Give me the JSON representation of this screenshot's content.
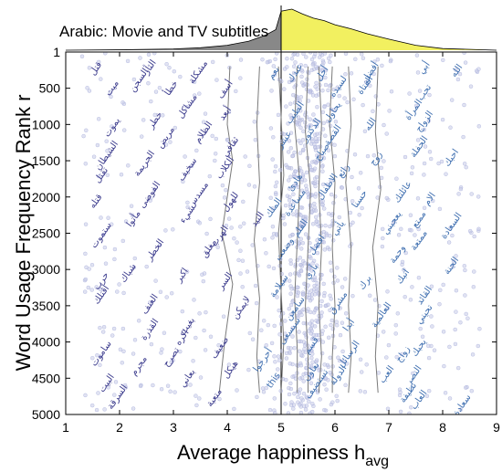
{
  "chart_data": {
    "type": "scatter",
    "title": "Arabic: Movie and TV subtitles",
    "xlabel": "Average happiness h",
    "xlabel_subscript": "avg",
    "ylabel": "Word Usage Frequency Rank r",
    "xlim": [
      1,
      9
    ],
    "ylim": [
      1,
      5000
    ],
    "x_ticks": [
      1,
      2,
      3,
      4,
      5,
      6,
      7,
      8,
      9
    ],
    "y_ticks": [
      1,
      500,
      1000,
      1500,
      2000,
      2500,
      3000,
      3500,
      4000,
      4500,
      5000
    ],
    "y_tick_labels": [
      "1",
      "500",
      "1000",
      "1500",
      "2000",
      "2500",
      "3000",
      "3500",
      "4000",
      "4500",
      "5000"
    ],
    "y_inverted": true,
    "grid": false,
    "colors": {
      "points": "#c8cce8",
      "low_words": "#3a3a8c",
      "high_words": "#3f6fb0",
      "median_lines": "#7a7a7a",
      "dist_low_fill": "#888888",
      "dist_high_fill": "#f2f060",
      "neutral_line": "#000000"
    },
    "marginal_distribution": {
      "split_at": 5,
      "x": [
        1,
        2,
        3,
        3.5,
        4,
        4.4,
        4.7,
        4.9,
        5,
        5.2,
        5.4,
        5.6,
        5.8,
        6,
        6.3,
        6.6,
        7,
        7.5,
        8,
        9
      ],
      "density": [
        0,
        0.01,
        0.03,
        0.06,
        0.12,
        0.22,
        0.36,
        0.5,
        0.95,
        1.0,
        0.88,
        0.78,
        0.72,
        0.62,
        0.52,
        0.4,
        0.27,
        0.12,
        0.04,
        0
      ]
    },
    "deciles": [
      {
        "name": "10%",
        "points": [
          [
            4.05,
            200
          ],
          [
            4.0,
            1000
          ],
          [
            4.1,
            1500
          ],
          [
            3.9,
            2500
          ],
          [
            4.1,
            3200
          ],
          [
            3.95,
            4000
          ],
          [
            3.85,
            4700
          ]
        ]
      },
      {
        "name": "20%",
        "points": [
          [
            4.6,
            200
          ],
          [
            4.55,
            1000
          ],
          [
            4.6,
            1800
          ],
          [
            4.5,
            2600
          ],
          [
            4.6,
            3400
          ],
          [
            4.55,
            4200
          ],
          [
            4.6,
            4700
          ]
        ]
      },
      {
        "name": "30%",
        "points": [
          [
            4.95,
            200
          ],
          [
            5.0,
            900
          ],
          [
            5.05,
            1700
          ],
          [
            4.95,
            2500
          ],
          [
            5.0,
            3300
          ],
          [
            5.05,
            4000
          ],
          [
            5.0,
            4700
          ]
        ]
      },
      {
        "name": "40%",
        "points": [
          [
            5.3,
            200
          ],
          [
            5.25,
            1000
          ],
          [
            5.35,
            1800
          ],
          [
            5.3,
            2600
          ],
          [
            5.25,
            3400
          ],
          [
            5.3,
            4100
          ],
          [
            5.3,
            4700
          ]
        ]
      },
      {
        "name": "50%",
        "points": [
          [
            5.5,
            200
          ],
          [
            5.45,
            1100
          ],
          [
            5.55,
            1900
          ],
          [
            5.5,
            2700
          ],
          [
            5.45,
            3500
          ],
          [
            5.5,
            4200
          ],
          [
            5.5,
            4700
          ]
        ]
      },
      {
        "name": "60%",
        "points": [
          [
            5.7,
            200
          ],
          [
            5.75,
            1000
          ],
          [
            5.7,
            1900
          ],
          [
            5.75,
            2700
          ],
          [
            5.7,
            3500
          ],
          [
            5.75,
            4200
          ],
          [
            5.7,
            4700
          ]
        ]
      },
      {
        "name": "70%",
        "points": [
          [
            5.95,
            200
          ],
          [
            5.9,
            1000
          ],
          [
            6.0,
            1800
          ],
          [
            5.95,
            2700
          ],
          [
            6.0,
            3500
          ],
          [
            5.95,
            4200
          ],
          [
            5.95,
            4700
          ]
        ]
      },
      {
        "name": "80%",
        "points": [
          [
            6.25,
            200
          ],
          [
            6.3,
            1000
          ],
          [
            6.2,
            1800
          ],
          [
            6.3,
            2700
          ],
          [
            6.25,
            3500
          ],
          [
            6.3,
            4200
          ],
          [
            6.25,
            4700
          ]
        ]
      },
      {
        "name": "90%",
        "points": [
          [
            6.8,
            200
          ],
          [
            6.75,
            1100
          ],
          [
            6.85,
            1900
          ],
          [
            6.7,
            2700
          ],
          [
            6.8,
            3500
          ],
          [
            6.75,
            4200
          ],
          [
            6.8,
            4700
          ]
        ]
      }
    ],
    "words_low": [
      {
        "x": 1.6,
        "y": 250,
        "text": "قتل"
      },
      {
        "x": 2.6,
        "y": 230,
        "text": "الثأر"
      },
      {
        "x": 2.4,
        "y": 410,
        "text": "السجن"
      },
      {
        "x": 3.5,
        "y": 300,
        "text": "مشكلة"
      },
      {
        "x": 1.9,
        "y": 520,
        "text": "ميت"
      },
      {
        "x": 3.0,
        "y": 520,
        "text": "خطأ"
      },
      {
        "x": 4.0,
        "y": 540,
        "text": "أسف"
      },
      {
        "x": 3.3,
        "y": 770,
        "text": "مشاكل"
      },
      {
        "x": 4.0,
        "y": 870,
        "text": "أبعد"
      },
      {
        "x": 2.7,
        "y": 960,
        "text": "خطر"
      },
      {
        "x": 1.9,
        "y": 1060,
        "text": "يموت"
      },
      {
        "x": 3.6,
        "y": 1130,
        "text": "الظلام"
      },
      {
        "x": 2.9,
        "y": 1200,
        "text": "مريض"
      },
      {
        "x": 4.1,
        "y": 1330,
        "text": "ثقافي"
      },
      {
        "x": 1.8,
        "y": 1450,
        "text": "الشيطان"
      },
      {
        "x": 2.5,
        "y": 1560,
        "text": "الجريمة"
      },
      {
        "x": 4.0,
        "y": 1620,
        "text": "الكلاب"
      },
      {
        "x": 1.7,
        "y": 1720,
        "text": "تقتل"
      },
      {
        "x": 3.3,
        "y": 1640,
        "text": "سخيف"
      },
      {
        "x": 2.6,
        "y": 1990,
        "text": "الفوضى"
      },
      {
        "x": 3.5,
        "y": 1990,
        "text": "مسدس"
      },
      {
        "x": 1.6,
        "y": 2080,
        "text": "قتله"
      },
      {
        "x": 4.1,
        "y": 2090,
        "text": "للهول"
      },
      {
        "x": 3.3,
        "y": 2260,
        "text": "شيء"
      },
      {
        "x": 2.3,
        "y": 2320,
        "text": "مأتوا"
      },
      {
        "x": 4.6,
        "y": 2330,
        "text": "التيد"
      },
      {
        "x": 1.7,
        "y": 2550,
        "text": "ستموت"
      },
      {
        "x": 3.9,
        "y": 2560,
        "text": "الهرب"
      },
      {
        "x": 2.7,
        "y": 2750,
        "text": "الخطر"
      },
      {
        "x": 3.7,
        "y": 2730,
        "text": "مغلق"
      },
      {
        "x": 2.2,
        "y": 3070,
        "text": "شباك"
      },
      {
        "x": 1.7,
        "y": 3180,
        "text": "حرب"
      },
      {
        "x": 3.2,
        "y": 3100,
        "text": "اكبر"
      },
      {
        "x": 4.0,
        "y": 3180,
        "text": "السر"
      },
      {
        "x": 1.7,
        "y": 3370,
        "text": "أقتلك"
      },
      {
        "x": 2.6,
        "y": 3500,
        "text": "العنف"
      },
      {
        "x": 4.3,
        "y": 3550,
        "text": "لايمكن"
      },
      {
        "x": 3.3,
        "y": 3800,
        "text": "بغيت"
      },
      {
        "x": 2.6,
        "y": 3850,
        "text": "القذرة"
      },
      {
        "x": 3.2,
        "y": 3960,
        "text": "اكره"
      },
      {
        "x": 3.9,
        "y": 4100,
        "text": "ضعيف"
      },
      {
        "x": 1.7,
        "y": 4180,
        "text": "ساموت"
      },
      {
        "x": 3.0,
        "y": 4230,
        "text": "تصرح"
      },
      {
        "x": 2.4,
        "y": 4350,
        "text": "مجرم"
      },
      {
        "x": 4.1,
        "y": 4400,
        "text": "هيكل"
      },
      {
        "x": 1.8,
        "y": 4590,
        "text": "البيت"
      },
      {
        "x": 3.3,
        "y": 4520,
        "text": "بعاني"
      },
      {
        "x": 2.0,
        "y": 4780,
        "text": "السرقة"
      },
      {
        "x": 3.8,
        "y": 4790,
        "text": "متعبة"
      }
    ],
    "words_high": [
      {
        "x": 8.3,
        "y": 280,
        "text": "الله"
      },
      {
        "x": 7.7,
        "y": 240,
        "text": "أبي"
      },
      {
        "x": 6.7,
        "y": 300,
        "text": "أفضل"
      },
      {
        "x": 6.6,
        "y": 480,
        "text": "الفتاة"
      },
      {
        "x": 5.8,
        "y": 320,
        "text": "أجل"
      },
      {
        "x": 5.3,
        "y": 310,
        "text": "عندك"
      },
      {
        "x": 4.9,
        "y": 310,
        "text": "نعم"
      },
      {
        "x": 6.1,
        "y": 500,
        "text": "لسيدة"
      },
      {
        "x": 7.7,
        "y": 580,
        "text": "تحب"
      },
      {
        "x": 7.5,
        "y": 820,
        "text": "المرأة"
      },
      {
        "x": 6.0,
        "y": 850,
        "text": "يحاول"
      },
      {
        "x": 5.3,
        "y": 860,
        "text": "الطيب"
      },
      {
        "x": 7.7,
        "y": 980,
        "text": "الزواج"
      },
      {
        "x": 6.7,
        "y": 1020,
        "text": "الله"
      },
      {
        "x": 5.6,
        "y": 1100,
        "text": "الدكتور"
      },
      {
        "x": 6.0,
        "y": 1170,
        "text": "القصة"
      },
      {
        "x": 5.1,
        "y": 1230,
        "text": "عشر"
      },
      {
        "x": 7.6,
        "y": 1330,
        "text": "الحفلة"
      },
      {
        "x": 8.2,
        "y": 1480,
        "text": "احبك"
      },
      {
        "x": 6.8,
        "y": 1490,
        "text": "زوج"
      },
      {
        "x": 5.8,
        "y": 1400,
        "text": "صباح"
      },
      {
        "x": 6.2,
        "y": 1660,
        "text": "رائع"
      },
      {
        "x": 5.9,
        "y": 1880,
        "text": "الاطفال"
      },
      {
        "x": 5.3,
        "y": 1820,
        "text": "هادئ"
      },
      {
        "x": 7.3,
        "y": 1950,
        "text": "عائلتك"
      },
      {
        "x": 7.8,
        "y": 2050,
        "text": "الام"
      },
      {
        "x": 6.5,
        "y": 2050,
        "text": "حسنا"
      },
      {
        "x": 5.3,
        "y": 2100,
        "text": "مساعدة"
      },
      {
        "x": 4.9,
        "y": 2170,
        "text": "الملك"
      },
      {
        "x": 8.2,
        "y": 2420,
        "text": "السعادة"
      },
      {
        "x": 7.1,
        "y": 2380,
        "text": "يعجبني"
      },
      {
        "x": 7.6,
        "y": 2330,
        "text": "ممتع"
      },
      {
        "x": 6.1,
        "y": 2450,
        "text": "يأتي"
      },
      {
        "x": 5.4,
        "y": 2450,
        "text": "القلم"
      },
      {
        "x": 5.7,
        "y": 2680,
        "text": "افضل"
      },
      {
        "x": 7.6,
        "y": 2620,
        "text": "ممتعة"
      },
      {
        "x": 5.1,
        "y": 2740,
        "text": "وضعت"
      },
      {
        "x": 7.2,
        "y": 2810,
        "text": "وحمة"
      },
      {
        "x": 8.2,
        "y": 2970,
        "text": "الجنة"
      },
      {
        "x": 5.6,
        "y": 3050,
        "text": "بأري"
      },
      {
        "x": 6.6,
        "y": 3200,
        "text": "برك"
      },
      {
        "x": 7.3,
        "y": 3120,
        "text": "اتبك"
      },
      {
        "x": 5.0,
        "y": 3250,
        "text": "سيلامة"
      },
      {
        "x": 6.1,
        "y": 3480,
        "text": "مشرق"
      },
      {
        "x": 7.7,
        "y": 3380,
        "text": "القائد"
      },
      {
        "x": 5.3,
        "y": 3560,
        "text": "سامعن"
      },
      {
        "x": 6.9,
        "y": 3650,
        "text": "العالمية"
      },
      {
        "x": 7.7,
        "y": 3640,
        "text": "تحيني"
      },
      {
        "x": 6.3,
        "y": 3790,
        "text": "أبدا"
      },
      {
        "x": 5.2,
        "y": 3870,
        "text": "سيسعى"
      },
      {
        "x": 7.6,
        "y": 4100,
        "text": "يحبك"
      },
      {
        "x": 7.3,
        "y": 4190,
        "text": "زواج"
      },
      {
        "x": 5.6,
        "y": 4070,
        "text": "قسم"
      },
      {
        "x": 6.3,
        "y": 4190,
        "text": "الرسائل"
      },
      {
        "x": 4.7,
        "y": 4270,
        "text": "أحرجوا"
      },
      {
        "x": 7.5,
        "y": 4480,
        "text": "النصر"
      },
      {
        "x": 7.0,
        "y": 4470,
        "text": "العب"
      },
      {
        "x": 5.6,
        "y": 4430,
        "text": "نعاون"
      },
      {
        "x": 6.1,
        "y": 4480,
        "text": "الدولة"
      },
      {
        "x": 4.9,
        "y": 4550,
        "text": "this"
      },
      {
        "x": 5.7,
        "y": 4600,
        "text": "تستضيف"
      },
      {
        "x": 7.4,
        "y": 4720,
        "text": "نظيفة"
      },
      {
        "x": 8.4,
        "y": 4890,
        "text": "سعادة"
      },
      {
        "x": 7.6,
        "y": 4820,
        "text": "العاب"
      }
    ]
  }
}
